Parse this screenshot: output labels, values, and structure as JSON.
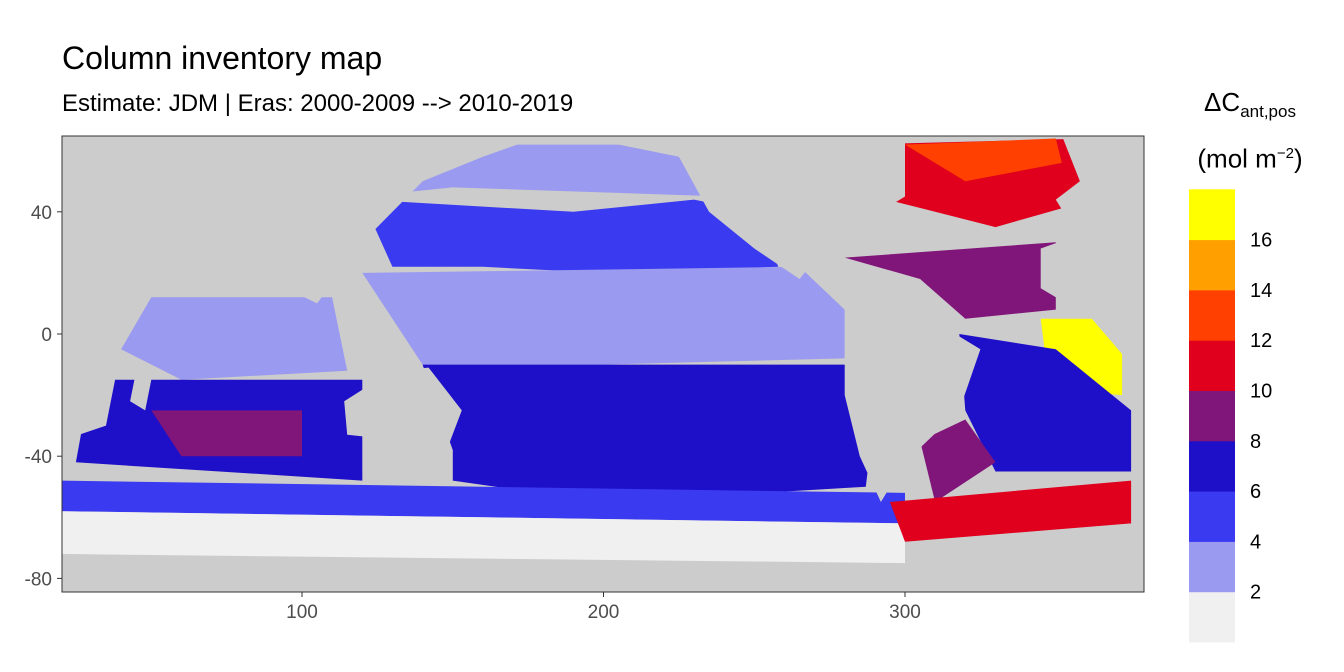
{
  "chart_data": {
    "type": "heatmap",
    "title": "Column inventory map",
    "subtitle": "Estimate: JDM  | Eras: 2000-2009 --> 2010-2019",
    "xlabel": "",
    "ylabel": "",
    "xlim": [
      20,
      200
    ],
    "ylim": [
      -85,
      65
    ],
    "x_ticks": [
      100,
      200,
      300
    ],
    "y_ticks": [
      40,
      0,
      -40,
      -80
    ],
    "land_color": "#cccccc",
    "panel_border": true,
    "legend": {
      "title_symbol": "ΔC",
      "title_subscript": "ant,pos",
      "units_base": "(mol m",
      "units_exponent": "−2",
      "units_close": ")",
      "position": "right",
      "bins": [
        {
          "upper": 2,
          "color": "#f0f0f0"
        },
        {
          "upper": 4,
          "color": "#9a9af0"
        },
        {
          "upper": 6,
          "color": "#3a3af0"
        },
        {
          "upper": 8,
          "color": "#1e0fc8"
        },
        {
          "upper": 10,
          "color": "#80157a"
        },
        {
          "upper": 12,
          "color": "#e0001e"
        },
        {
          "upper": 14,
          "color": "#ff4000"
        },
        {
          "upper": 16,
          "color": "#ffa000"
        },
        {
          "upper": 18,
          "color": "#ffff00"
        }
      ],
      "tick_labels": [
        "2",
        "4",
        "6",
        "8",
        "10",
        "12",
        "14",
        "16"
      ]
    },
    "ocean_regions": [
      {
        "name": "north-pacific-polar",
        "value": 3,
        "polygon": [
          [
            70,
            62
          ],
          [
            230,
            62
          ],
          [
            240,
            52
          ],
          [
            240,
            45
          ],
          [
            150,
            48
          ],
          [
            120,
            45
          ],
          [
            110,
            55
          ]
        ]
      },
      {
        "name": "north-pacific-gyre",
        "value": 5,
        "polygon": [
          [
            120,
            44
          ],
          [
            190,
            40
          ],
          [
            230,
            44
          ],
          [
            250,
            40
          ],
          [
            258,
            22
          ],
          [
            200,
            20
          ],
          [
            160,
            22
          ],
          [
            130,
            22
          ]
        ]
      },
      {
        "name": "equatorial-pacific",
        "value": 3,
        "polygon": [
          [
            120,
            20
          ],
          [
            265,
            22
          ],
          [
            280,
            8
          ],
          [
            280,
            -8
          ],
          [
            200,
            -10
          ],
          [
            140,
            -10
          ]
        ]
      },
      {
        "name": "south-pacific",
        "value": 7,
        "polygon": [
          [
            140,
            -10
          ],
          [
            285,
            -10
          ],
          [
            290,
            -25
          ],
          [
            287,
            -50
          ],
          [
            200,
            -55
          ],
          [
            150,
            -48
          ],
          [
            150,
            -38
          ]
        ]
      },
      {
        "name": "indian-north",
        "value": 3,
        "polygon": [
          [
            40,
            12
          ],
          [
            110,
            12
          ],
          [
            115,
            -12
          ],
          [
            60,
            -15
          ],
          [
            40,
            -5
          ]
        ]
      },
      {
        "name": "indian-south",
        "value": 7,
        "polygon": [
          [
            30,
            -15
          ],
          [
            120,
            -15
          ],
          [
            120,
            -48
          ],
          [
            25,
            -42
          ]
        ]
      },
      {
        "name": "indian-core",
        "value": 9,
        "polygon": [
          [
            50,
            -25
          ],
          [
            100,
            -25
          ],
          [
            100,
            -40
          ],
          [
            60,
            -40
          ]
        ]
      },
      {
        "name": "southern-band",
        "value": 5,
        "polygon": [
          [
            20,
            -48
          ],
          [
            300,
            -52
          ],
          [
            300,
            -62
          ],
          [
            20,
            -58
          ]
        ]
      },
      {
        "name": "antarctic",
        "value": 1,
        "polygon": [
          [
            20,
            -58
          ],
          [
            300,
            -62
          ],
          [
            300,
            -75
          ],
          [
            20,
            -72
          ]
        ]
      },
      {
        "name": "north-atlantic",
        "value": 11,
        "polygon": [
          [
            285,
            62
          ],
          [
            360,
            64
          ],
          [
            368,
            55
          ],
          [
            355,
            42
          ],
          [
            330,
            35
          ],
          [
            310,
            40
          ],
          [
            290,
            45
          ]
        ]
      },
      {
        "name": "subpolar-atlantic",
        "value": 13,
        "polygon": [
          [
            300,
            62
          ],
          [
            350,
            64
          ],
          [
            352,
            56
          ],
          [
            320,
            50
          ]
        ]
      },
      {
        "name": "atlantic-tropics",
        "value": 9,
        "polygon": [
          [
            280,
            25
          ],
          [
            350,
            30
          ],
          [
            350,
            8
          ],
          [
            320,
            5
          ],
          [
            305,
            18
          ]
        ]
      },
      {
        "name": "east-atlantic-hotspot",
        "value": 17,
        "polygon": [
          [
            345,
            5
          ],
          [
            372,
            5
          ],
          [
            372,
            -20
          ],
          [
            348,
            -18
          ]
        ]
      },
      {
        "name": "south-atlantic",
        "value": 7,
        "polygon": [
          [
            318,
            0
          ],
          [
            350,
            -5
          ],
          [
            375,
            -25
          ],
          [
            375,
            -45
          ],
          [
            330,
            -45
          ],
          [
            320,
            -25
          ]
        ]
      },
      {
        "name": "sw-atlantic",
        "value": 9,
        "polygon": [
          [
            305,
            -35
          ],
          [
            320,
            -28
          ],
          [
            330,
            -42
          ],
          [
            310,
            -55
          ]
        ]
      },
      {
        "name": "south-atlantic-front",
        "value": 11,
        "polygon": [
          [
            295,
            -55
          ],
          [
            375,
            -48
          ],
          [
            375,
            -62
          ],
          [
            300,
            -68
          ]
        ]
      }
    ],
    "land_masses": [
      {
        "name": "africa",
        "polygon": [
          [
            20,
            37
          ],
          [
            35,
            32
          ],
          [
            50,
            12
          ],
          [
            40,
            -5
          ],
          [
            35,
            -30
          ],
          [
            20,
            -35
          ]
        ]
      },
      {
        "name": "asia",
        "polygon": [
          [
            20,
            65
          ],
          [
            180,
            65
          ],
          [
            160,
            58
          ],
          [
            140,
            50
          ],
          [
            120,
            30
          ],
          [
            105,
            10
          ],
          [
            80,
            22
          ],
          [
            60,
            25
          ],
          [
            40,
            40
          ],
          [
            20,
            45
          ]
        ]
      },
      {
        "name": "madagascar",
        "polygon": [
          [
            45,
            -12
          ],
          [
            50,
            -15
          ],
          [
            48,
            -25
          ],
          [
            43,
            -22
          ]
        ]
      },
      {
        "name": "australia",
        "polygon": [
          [
            114,
            -22
          ],
          [
            130,
            -12
          ],
          [
            142,
            -11
          ],
          [
            153,
            -25
          ],
          [
            148,
            -38
          ],
          [
            135,
            -35
          ],
          [
            115,
            -33
          ]
        ]
      },
      {
        "name": "north-america",
        "polygon": [
          [
            190,
            65
          ],
          [
            300,
            65
          ],
          [
            300,
            45
          ],
          [
            275,
            30
          ],
          [
            265,
            18
          ],
          [
            250,
            28
          ],
          [
            235,
            40
          ],
          [
            225,
            58
          ]
        ]
      },
      {
        "name": "south-america",
        "polygon": [
          [
            280,
            10
          ],
          [
            300,
            10
          ],
          [
            325,
            -5
          ],
          [
            318,
            -25
          ],
          [
            300,
            -42
          ],
          [
            292,
            -55
          ],
          [
            285,
            -40
          ],
          [
            280,
            -20
          ]
        ]
      },
      {
        "name": "europe",
        "polygon": [
          [
            350,
            70
          ],
          [
            380,
            70
          ],
          [
            380,
            38
          ],
          [
            355,
            36
          ],
          [
            350,
            44
          ],
          [
            358,
            50
          ]
        ]
      },
      {
        "name": "west-africa",
        "polygon": [
          [
            368,
            36
          ],
          [
            380,
            36
          ],
          [
            380,
            -25
          ],
          [
            375,
            -10
          ],
          [
            362,
            5
          ],
          [
            345,
            15
          ],
          [
            345,
            28
          ]
        ]
      },
      {
        "name": "antarctica",
        "polygon": [
          [
            20,
            -72
          ],
          [
            380,
            -78
          ],
          [
            380,
            -90
          ],
          [
            20,
            -90
          ]
        ]
      }
    ]
  }
}
